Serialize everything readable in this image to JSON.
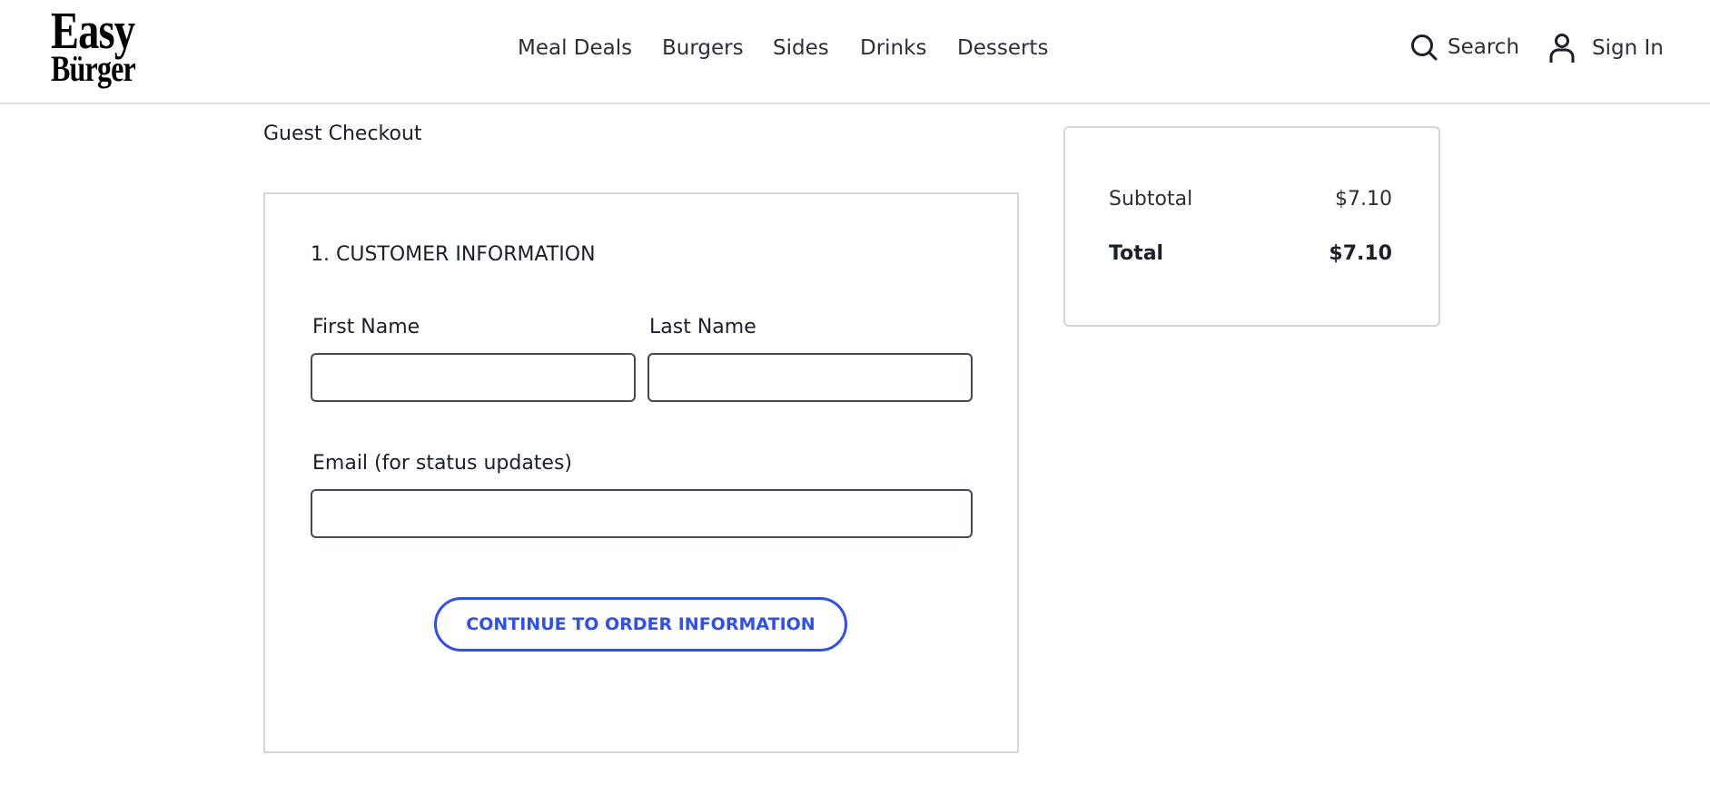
{
  "brand": {
    "line1": "Easy",
    "line2": "Bürger"
  },
  "nav": {
    "items": [
      {
        "label": "Meal Deals"
      },
      {
        "label": "Burgers"
      },
      {
        "label": "Sides"
      },
      {
        "label": "Drinks"
      },
      {
        "label": "Desserts"
      }
    ]
  },
  "header_actions": {
    "search_label": "Search",
    "search_icon": "search-icon",
    "signin_label": "Sign In",
    "signin_icon": "user-icon"
  },
  "page": {
    "heading": "Guest Checkout"
  },
  "form": {
    "section_title": "1. CUSTOMER INFORMATION",
    "first_name": {
      "label": "First Name",
      "value": "",
      "placeholder": ""
    },
    "last_name": {
      "label": "Last Name",
      "value": "",
      "placeholder": ""
    },
    "email": {
      "label": "Email (for status updates)",
      "value": "",
      "placeholder": ""
    },
    "continue_label": "CONTINUE TO ORDER INFORMATION"
  },
  "summary": {
    "subtotal_label": "Subtotal",
    "subtotal_value": "$7.10",
    "total_label": "Total",
    "total_value": "$7.10"
  },
  "colors": {
    "accent": "#2d4ff4",
    "border": "#d3d5db",
    "input_border": "#424858"
  }
}
